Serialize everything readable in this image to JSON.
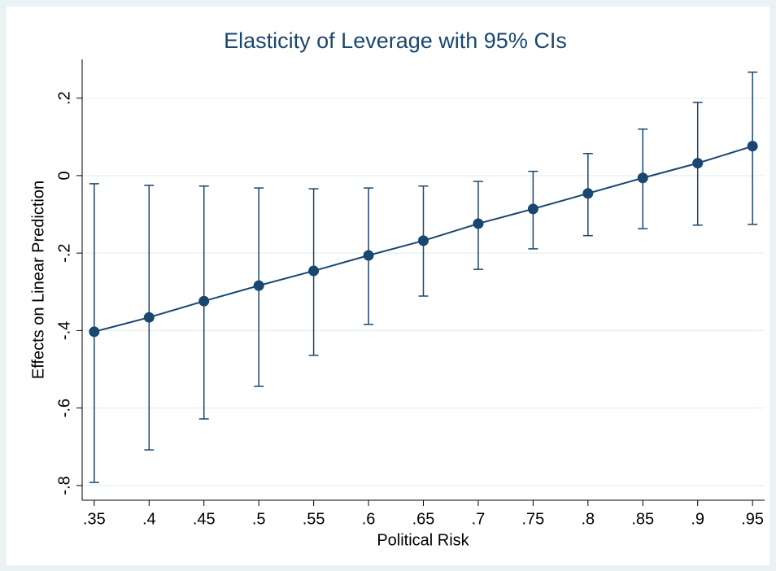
{
  "chart_data": {
    "type": "errorbar-line",
    "title": "Elasticity of Leverage with 95% CIs",
    "x_label": "Political Risk",
    "y_label": "Effects on Linear Prediction",
    "color": "#1a476f",
    "grid": true,
    "x": [
      0.35,
      0.4,
      0.45,
      0.5,
      0.55,
      0.6,
      0.65,
      0.7,
      0.75,
      0.8,
      0.85,
      0.9,
      0.95
    ],
    "values": [
      -0.403,
      -0.366,
      -0.324,
      -0.284,
      -0.246,
      -0.206,
      -0.168,
      -0.124,
      -0.086,
      -0.046,
      -0.006,
      0.032,
      0.076
    ],
    "ci_low": [
      -0.792,
      -0.708,
      -0.628,
      -0.544,
      -0.464,
      -0.384,
      -0.311,
      -0.242,
      -0.189,
      -0.155,
      -0.137,
      -0.128,
      -0.126
    ],
    "ci_high": [
      -0.021,
      -0.025,
      -0.027,
      -0.032,
      -0.034,
      -0.032,
      -0.027,
      -0.015,
      0.011,
      0.057,
      0.12,
      0.189,
      0.267
    ],
    "xlim": [
      0.339,
      0.961
    ],
    "ylim": [
      -0.838,
      0.3
    ],
    "xticks": [
      {
        "value": 0.35,
        "label": ".35"
      },
      {
        "value": 0.4,
        "label": ".4"
      },
      {
        "value": 0.45,
        "label": ".45"
      },
      {
        "value": 0.5,
        "label": ".5"
      },
      {
        "value": 0.55,
        "label": ".55"
      },
      {
        "value": 0.6,
        "label": ".6"
      },
      {
        "value": 0.65,
        "label": ".65"
      },
      {
        "value": 0.7,
        "label": ".7"
      },
      {
        "value": 0.75,
        "label": ".75"
      },
      {
        "value": 0.8,
        "label": ".8"
      },
      {
        "value": 0.85,
        "label": ".85"
      },
      {
        "value": 0.9,
        "label": ".9"
      },
      {
        "value": 0.95,
        "label": ".95"
      }
    ],
    "yticks": [
      {
        "value": -0.8,
        "label": "-.8"
      },
      {
        "value": -0.6,
        "label": "-.6"
      },
      {
        "value": -0.4,
        "label": "-.4"
      },
      {
        "value": -0.2,
        "label": "-.2"
      },
      0,
      {
        "value": 0.2,
        "label": ".2"
      }
    ]
  }
}
